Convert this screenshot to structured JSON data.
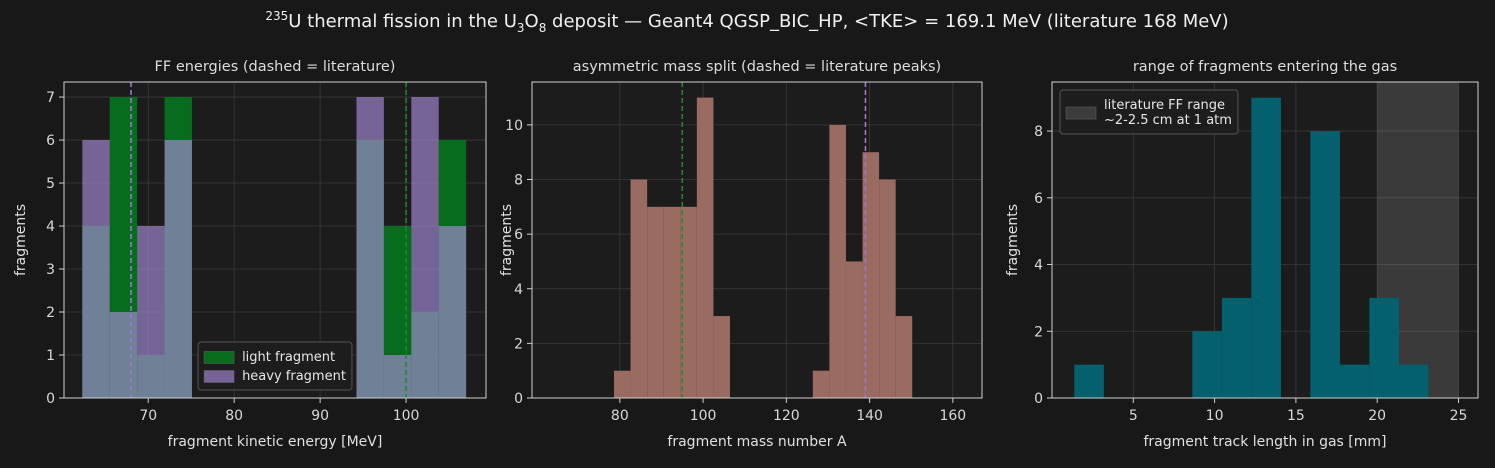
{
  "title": [
    "235",
    "U thermal fission in the U",
    "3",
    "O",
    "8",
    " deposit — Geant4 QGSP_BIC_HP, <TKE> = 169.1 MeV (literature 168 MeV)"
  ],
  "chart_data": [
    {
      "type": "histogram",
      "title": "FF energies (dashed = literature)",
      "x_label": "fragment kinetic energy [MeV]",
      "y_label": "fragments",
      "bins": [
        62.33,
        65.52,
        68.71,
        71.9,
        75.09,
        78.28,
        81.47,
        84.66,
        87.85,
        91.04,
        94.23,
        97.42,
        100.61,
        103.8,
        106.99
      ],
      "series": [
        {
          "name": "light fragment",
          "color": "#05741fe8",
          "values": [
            4,
            7,
            1,
            7,
            0,
            0,
            0,
            0,
            0,
            0,
            6,
            4,
            2,
            6
          ]
        },
        {
          "name": "heavy fragment",
          "color": "#a58ad6a8",
          "values": [
            6,
            2,
            4,
            6,
            0,
            0,
            0,
            0,
            0,
            0,
            7,
            1,
            7,
            4
          ]
        }
      ],
      "vlines": [
        {
          "x": 68,
          "color": "#a07ad0"
        },
        {
          "x": 100,
          "color": "#1d8c2c"
        }
      ],
      "xlim": [
        60.2,
        109.3
      ],
      "xticks": [
        70,
        80,
        90,
        100
      ],
      "ylim": [
        0,
        7.35
      ],
      "yticks": [
        0,
        1,
        2,
        3,
        4,
        5,
        6,
        7
      ],
      "grid": true,
      "legend": "lower center"
    },
    {
      "type": "histogram",
      "title": "asymmetric mass split (dashed = literature peaks)",
      "x_label": "fragment mass number A",
      "y_label": "fragments",
      "bins": [
        78.6,
        82.58,
        86.56,
        90.54,
        94.52,
        98.5,
        102.48,
        106.46,
        110.44,
        114.42,
        118.4,
        122.38,
        126.36,
        130.34,
        134.32,
        138.3,
        142.28,
        146.26,
        150.24
      ],
      "series": [
        {
          "color": "#9a6b61",
          "values": [
            1,
            8,
            7,
            7,
            7,
            11,
            3,
            0,
            0,
            0,
            0,
            0,
            1,
            10,
            5,
            9,
            8,
            3
          ]
        }
      ],
      "vlines": [
        {
          "x": 95,
          "color": "#1d8c2c"
        },
        {
          "x": 139,
          "color": "#a07ad0"
        }
      ],
      "xlim": [
        58.9,
        167
      ],
      "xticks": [
        80,
        100,
        120,
        140,
        160
      ],
      "ylim": [
        0,
        11.57
      ],
      "yticks": [
        0,
        2,
        4,
        6,
        8,
        10
      ],
      "grid": true
    },
    {
      "type": "histogram",
      "title": "range of fragments entering the gas",
      "x_label": "fragment track length in gas [mm]",
      "y_label": "fragments",
      "bins": [
        1.37,
        3.19,
        5.0,
        6.82,
        8.63,
        10.45,
        12.26,
        14.08,
        15.89,
        17.71,
        19.52,
        21.34,
        23.15
      ],
      "series": [
        {
          "color": "#05606e",
          "values": [
            1,
            0,
            0,
            0,
            2,
            3,
            9,
            0,
            8,
            1,
            3,
            1
          ]
        }
      ],
      "span": {
        "range": [
          20,
          25
        ],
        "color": "#ffffff22",
        "label": [
          "literature FF range",
          "~2-2.5 cm at 1 atm"
        ]
      },
      "xlim": [
        0,
        26.2
      ],
      "xticks": [
        5,
        10,
        15,
        20,
        25
      ],
      "ylim": [
        0,
        9.47
      ],
      "yticks": [
        0,
        2,
        4,
        6,
        8
      ],
      "grid": true,
      "legend": "upper left"
    }
  ]
}
